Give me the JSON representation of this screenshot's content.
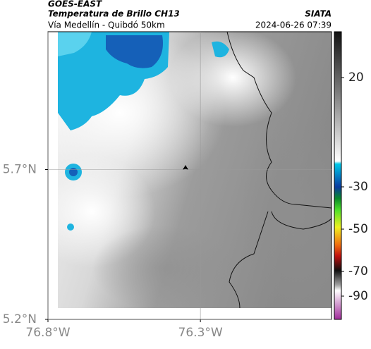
{
  "header": {
    "satellite": "GOES-EAST",
    "title": "Temperatura de Brillo CH13",
    "subtitle": "Vía Medellín - Quibdó 50km",
    "source": "SIATA",
    "datetime": "2024-06-26 07:39"
  },
  "map": {
    "xlim": [
      -76.8,
      -75.87
    ],
    "ylim": [
      5.2,
      6.16
    ],
    "xticks": [
      {
        "value": -76.8,
        "label": "76.8°W"
      },
      {
        "value": -76.3,
        "label": "76.3°W"
      }
    ],
    "yticks": [
      {
        "value": 5.7,
        "label": "5.7°N"
      },
      {
        "value": 5.2,
        "label": "5.2°N"
      }
    ],
    "grid": true
  },
  "colorbar": {
    "ticks": [
      20,
      -30,
      -50,
      -70,
      -90
    ]
  }
}
